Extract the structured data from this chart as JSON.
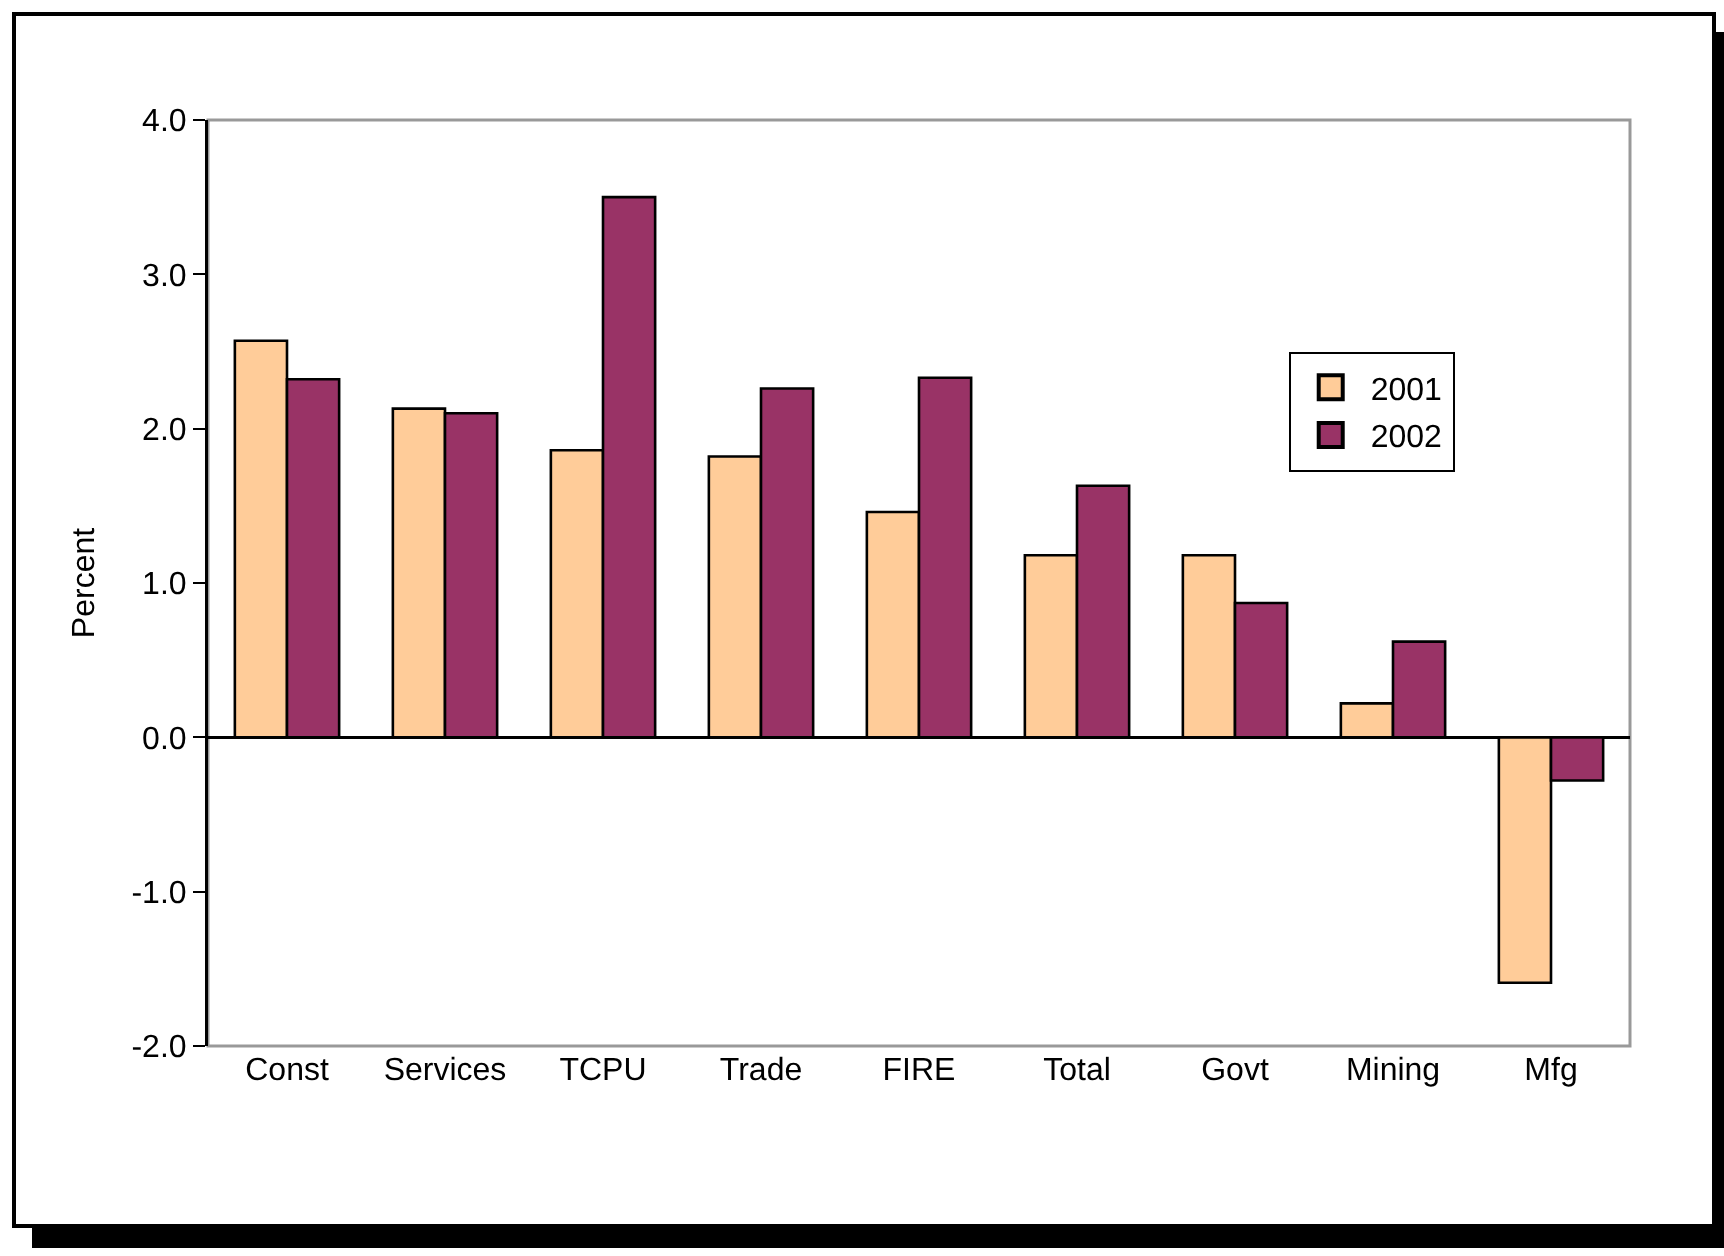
{
  "chart_data": {
    "type": "bar",
    "ylabel": "Percent",
    "categories": [
      "Const",
      "Services",
      "TCPU",
      "Trade",
      "FIRE",
      "Total",
      "Govt",
      "Mining",
      "Mfg"
    ],
    "series": [
      {
        "name": "2001",
        "color": "#ffcc99",
        "values": [
          2.57,
          2.13,
          1.86,
          1.82,
          1.46,
          1.18,
          1.18,
          0.22,
          -1.59
        ]
      },
      {
        "name": "2002",
        "color": "#993366",
        "values": [
          2.32,
          2.1,
          3.5,
          2.26,
          2.33,
          1.63,
          0.87,
          0.62,
          -0.28
        ]
      }
    ],
    "ylim": [
      -2,
      4
    ],
    "yticks": [
      {
        "value": -2,
        "label": "-2.0"
      },
      {
        "value": -1,
        "label": "-1.0"
      },
      {
        "value": 0,
        "label": "0.0"
      },
      {
        "value": 1,
        "label": "1.0"
      },
      {
        "value": 2,
        "label": "2.0"
      },
      {
        "value": 3,
        "label": "3.0"
      },
      {
        "value": 4,
        "label": "4.0"
      }
    ],
    "legend": "right"
  }
}
